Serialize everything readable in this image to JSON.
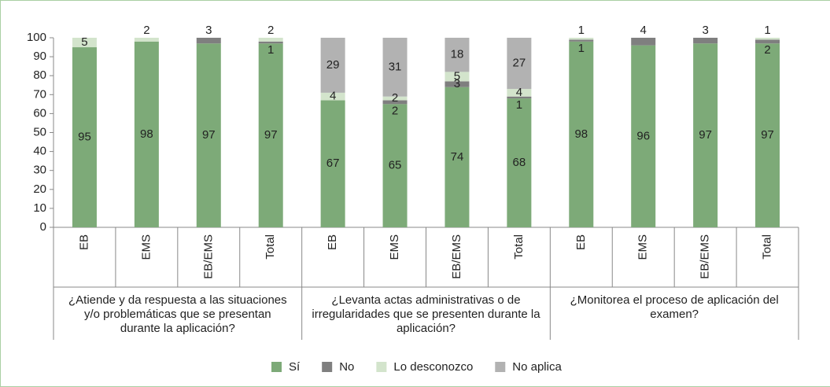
{
  "chart_data": {
    "type": "stacked_bar",
    "groups": [
      {
        "label": "¿Atiende y da respuesta a las situaciones y/o problemáticas que se presentan durante la aplicación?",
        "categories": [
          "EB",
          "EMS",
          "EB/EMS",
          "Total"
        ]
      },
      {
        "label": "¿Levanta actas administrativas o de irregularidades que se presenten durante la aplicación?",
        "categories": [
          "EB",
          "EMS",
          "EB/EMS",
          "Total"
        ]
      },
      {
        "label": "¿Monitorea el proceso de aplicación del examen?",
        "categories": [
          "EB",
          "EMS",
          "EB/EMS",
          "Total"
        ]
      }
    ],
    "series": [
      {
        "name": "Sí",
        "color": "#7daa78",
        "values": [
          95,
          98,
          97,
          97,
          67,
          65,
          74,
          68,
          98,
          96,
          97,
          97
        ]
      },
      {
        "name": "No",
        "color": "#7f7f7f",
        "values": [
          null,
          null,
          3,
          1,
          null,
          2,
          3,
          1,
          1,
          4,
          3,
          2
        ]
      },
      {
        "name": "Lo desconozco",
        "color": "#d3e4cc",
        "values": [
          5,
          2,
          null,
          2,
          4,
          2,
          5,
          4,
          1,
          null,
          null,
          1
        ]
      },
      {
        "name": "No aplica",
        "color": "#b2b2b2",
        "values": [
          null,
          null,
          null,
          null,
          29,
          31,
          18,
          27,
          null,
          null,
          null,
          null
        ]
      }
    ],
    "ylim": [
      0,
      100
    ],
    "yticks": [
      0,
      10,
      20,
      30,
      40,
      50,
      60,
      70,
      80,
      90,
      100
    ],
    "legend": "bottom"
  }
}
